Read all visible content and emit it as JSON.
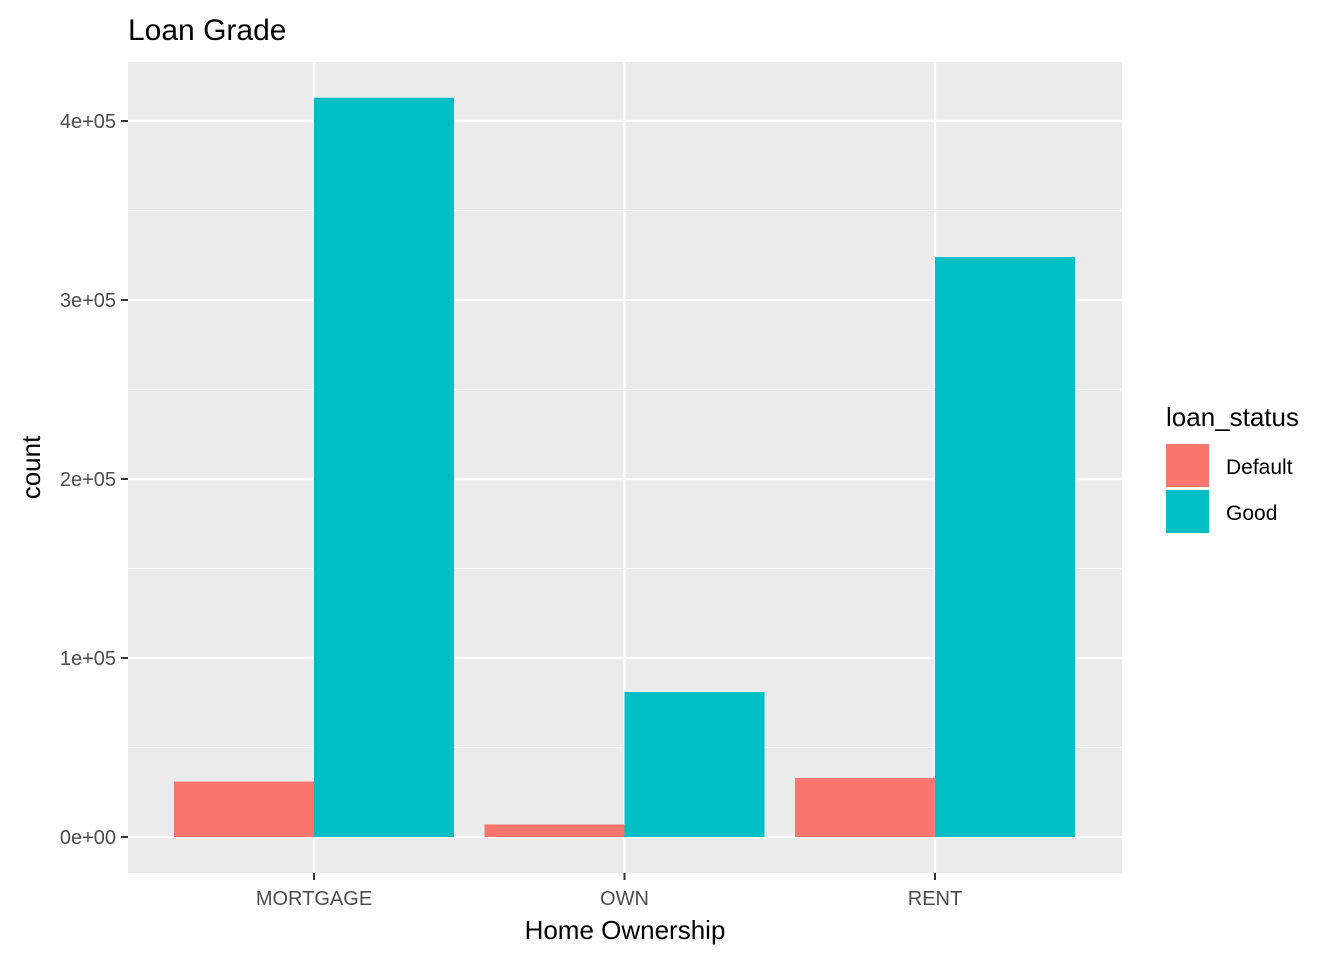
{
  "chart_data": {
    "type": "bar",
    "title": "Loan Grade",
    "xlabel": "Home Ownership",
    "ylabel": "count",
    "categories": [
      "MORTGAGE",
      "OWN",
      "RENT"
    ],
    "series": [
      {
        "name": "Default",
        "color": "#F8766D",
        "values": [
          31000,
          7000,
          33000
        ]
      },
      {
        "name": "Good",
        "color": "#00BFC4",
        "values": [
          413000,
          81000,
          324000
        ]
      }
    ],
    "ylim": [
      -20000,
      432000
    ],
    "y_ticks": [
      {
        "value": 0,
        "label": "0e+00"
      },
      {
        "value": 100000,
        "label": "1e+05"
      },
      {
        "value": 200000,
        "label": "2e+05"
      },
      {
        "value": 300000,
        "label": "3e+05"
      },
      {
        "value": 400000,
        "label": "4e+05"
      }
    ],
    "legend": {
      "title": "loan_status",
      "position": "right"
    },
    "grid": true,
    "panel_background": "#EBEBEB",
    "grid_color": "#FFFFFF"
  }
}
